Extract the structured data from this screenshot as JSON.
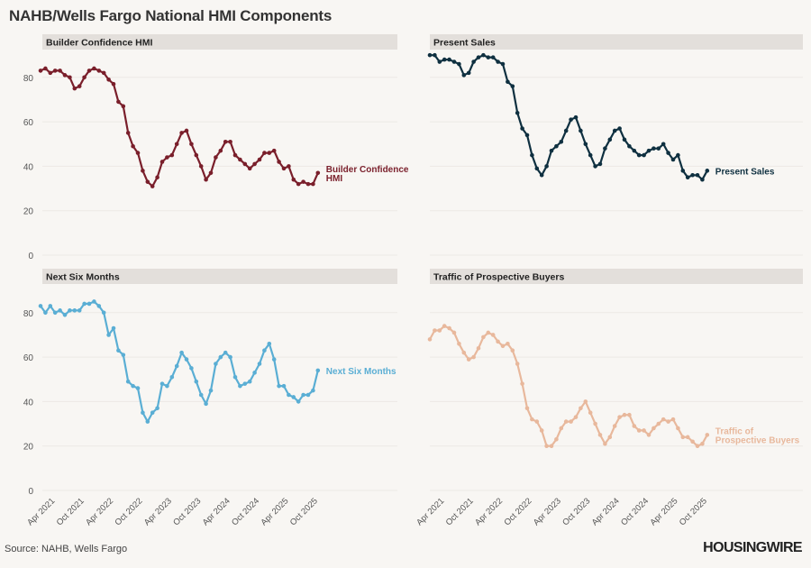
{
  "header": {
    "title": "NAHB/Wells Fargo National HMI Components"
  },
  "footer": {
    "source": "Source: NAHB, Wells Fargo",
    "brand": "HOUSINGWIRE"
  },
  "chart_data": [
    {
      "type": "line",
      "title": "Builder Confidence HMI",
      "label_lines": [
        "Builder Confidence",
        "HMI"
      ],
      "color": "#7a1f2b",
      "ylim": [
        0,
        90
      ],
      "yticks": [
        0,
        20,
        40,
        60,
        80
      ],
      "x_start": "Jan 2021",
      "x_end": "Oct 2025",
      "xticks": [
        "Apr 2021",
        "Oct 2021",
        "Apr 2022",
        "Oct 2022",
        "Apr 2023",
        "Oct 2023",
        "Apr 2024",
        "Oct 2024",
        "Apr 2025",
        "Oct 2025"
      ],
      "show_xticks": false,
      "values": [
        83,
        84,
        82,
        83,
        83,
        81,
        80,
        75,
        76,
        80,
        83,
        84,
        83,
        82,
        79,
        77,
        69,
        67,
        55,
        49,
        46,
        38,
        33,
        31,
        35,
        42,
        44,
        45,
        50,
        55,
        56,
        50,
        45,
        40,
        34,
        37,
        44,
        47,
        51,
        51,
        45,
        43,
        41,
        39,
        41,
        43,
        46,
        46,
        47,
        42,
        39,
        40,
        34,
        32,
        33,
        32,
        32,
        37
      ]
    },
    {
      "type": "line",
      "title": "Present Sales",
      "label_lines": [
        "Present Sales"
      ],
      "color": "#0f3040",
      "ylim": [
        0,
        90
      ],
      "yticks": [
        0,
        20,
        40,
        60,
        80
      ],
      "x_start": "Jan 2021",
      "x_end": "Oct 2025",
      "xticks": [
        "Apr 2021",
        "Oct 2021",
        "Apr 2022",
        "Oct 2022",
        "Apr 2023",
        "Oct 2023",
        "Apr 2024",
        "Oct 2024",
        "Apr 2025",
        "Oct 2025"
      ],
      "show_xticks": false,
      "values": [
        90,
        90,
        87,
        88,
        88,
        87,
        86,
        81,
        82,
        87,
        89,
        90,
        89,
        89,
        87,
        86,
        78,
        76,
        64,
        57,
        54,
        45,
        39,
        36,
        40,
        47,
        49,
        51,
        56,
        61,
        62,
        56,
        50,
        45,
        40,
        41,
        48,
        52,
        56,
        57,
        52,
        49,
        47,
        45,
        45,
        47,
        48,
        48,
        50,
        46,
        43,
        45,
        38,
        35,
        36,
        36,
        34,
        38
      ]
    },
    {
      "type": "line",
      "title": "Next Six Months",
      "label_lines": [
        "Next Six Months"
      ],
      "color": "#5aaed4",
      "ylim": [
        0,
        90
      ],
      "yticks": [
        0,
        20,
        40,
        60,
        80
      ],
      "x_start": "Jan 2021",
      "x_end": "Oct 2025",
      "xticks": [
        "Apr 2021",
        "Oct 2021",
        "Apr 2022",
        "Oct 2022",
        "Apr 2023",
        "Oct 2023",
        "Apr 2024",
        "Oct 2024",
        "Apr 2025",
        "Oct 2025"
      ],
      "show_xticks": true,
      "values": [
        83,
        80,
        83,
        80,
        81,
        79,
        81,
        81,
        81,
        84,
        84,
        85,
        83,
        80,
        70,
        73,
        63,
        61,
        49,
        47,
        46,
        35,
        31,
        35,
        37,
        48,
        47,
        51,
        56,
        62,
        59,
        55,
        49,
        43,
        39,
        45,
        57,
        60,
        62,
        60,
        51,
        47,
        48,
        49,
        53,
        57,
        63,
        66,
        59,
        47,
        47,
        43,
        42,
        40,
        43,
        43,
        45,
        54
      ]
    },
    {
      "type": "line",
      "title": "Traffic of Prospective Buyers",
      "label_lines": [
        "Traffic of",
        "Prospective Buyers"
      ],
      "color": "#e8b89c",
      "ylim": [
        0,
        90
      ],
      "yticks": [
        0,
        20,
        40,
        60,
        80
      ],
      "x_start": "Jan 2021",
      "x_end": "Oct 2025",
      "xticks": [
        "Apr 2021",
        "Oct 2021",
        "Apr 2022",
        "Oct 2022",
        "Apr 2023",
        "Oct 2023",
        "Apr 2024",
        "Oct 2024",
        "Apr 2025",
        "Oct 2025"
      ],
      "show_xticks": true,
      "values": [
        68,
        72,
        72,
        74,
        73,
        71,
        66,
        62,
        59,
        60,
        64,
        69,
        71,
        70,
        67,
        65,
        66,
        63,
        57,
        48,
        37,
        32,
        31,
        27,
        20,
        20,
        23,
        28,
        31,
        31,
        33,
        37,
        40,
        35,
        30,
        25,
        21,
        24,
        29,
        33,
        34,
        34,
        29,
        27,
        27,
        25,
        28,
        30,
        32,
        31,
        32,
        28,
        24,
        24,
        22,
        20,
        21,
        25
      ]
    }
  ]
}
